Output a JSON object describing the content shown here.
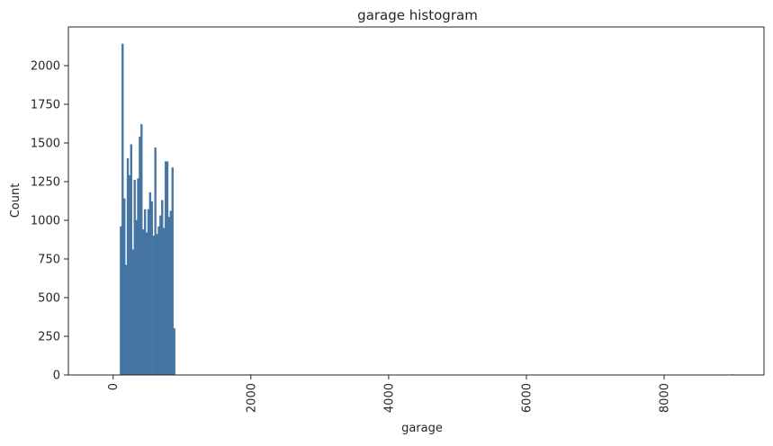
{
  "chart_data": {
    "type": "bar",
    "subtype": "histogram",
    "title": "garage histogram",
    "xlabel": "garage",
    "ylabel": "Count",
    "xlim": [
      -650,
      9450
    ],
    "ylim": [
      0,
      2250
    ],
    "xticks": [
      0,
      2000,
      4000,
      6000,
      8000
    ],
    "xtick_labels": [
      "0",
      "2000",
      "4000",
      "6000",
      "8000"
    ],
    "xtick_rotation": 90,
    "yticks": [
      0,
      250,
      500,
      750,
      1000,
      1250,
      1500,
      1750,
      2000
    ],
    "ytick_labels": [
      "0",
      "250",
      "500",
      "750",
      "1000",
      "1250",
      "1500",
      "1750",
      "2000"
    ],
    "grid": false,
    "bar_color": "#4878a8",
    "edge_color": "#3a6a96",
    "bins": [
      {
        "x0": 100,
        "x1": 125,
        "count": 960
      },
      {
        "x0": 125,
        "x1": 150,
        "count": 2140
      },
      {
        "x0": 150,
        "x1": 175,
        "count": 1140
      },
      {
        "x0": 175,
        "x1": 200,
        "count": 710
      },
      {
        "x0": 200,
        "x1": 225,
        "count": 1400
      },
      {
        "x0": 225,
        "x1": 250,
        "count": 1290
      },
      {
        "x0": 250,
        "x1": 275,
        "count": 1490
      },
      {
        "x0": 275,
        "x1": 300,
        "count": 810
      },
      {
        "x0": 300,
        "x1": 325,
        "count": 1260
      },
      {
        "x0": 325,
        "x1": 350,
        "count": 1000
      },
      {
        "x0": 350,
        "x1": 375,
        "count": 1270
      },
      {
        "x0": 375,
        "x1": 400,
        "count": 1540
      },
      {
        "x0": 400,
        "x1": 425,
        "count": 1620
      },
      {
        "x0": 425,
        "x1": 450,
        "count": 940
      },
      {
        "x0": 450,
        "x1": 475,
        "count": 1070
      },
      {
        "x0": 475,
        "x1": 500,
        "count": 920
      },
      {
        "x0": 500,
        "x1": 525,
        "count": 1070
      },
      {
        "x0": 525,
        "x1": 550,
        "count": 1180
      },
      {
        "x0": 550,
        "x1": 575,
        "count": 1120
      },
      {
        "x0": 575,
        "x1": 600,
        "count": 900
      },
      {
        "x0": 600,
        "x1": 625,
        "count": 1470
      },
      {
        "x0": 625,
        "x1": 650,
        "count": 910
      },
      {
        "x0": 650,
        "x1": 675,
        "count": 960
      },
      {
        "x0": 675,
        "x1": 700,
        "count": 1030
      },
      {
        "x0": 700,
        "x1": 725,
        "count": 1130
      },
      {
        "x0": 725,
        "x1": 750,
        "count": 950
      },
      {
        "x0": 750,
        "x1": 775,
        "count": 1380
      },
      {
        "x0": 775,
        "x1": 800,
        "count": 1380
      },
      {
        "x0": 800,
        "x1": 825,
        "count": 1020
      },
      {
        "x0": 825,
        "x1": 850,
        "count": 1060
      },
      {
        "x0": 850,
        "x1": 875,
        "count": 1340
      },
      {
        "x0": 875,
        "x1": 900,
        "count": 300
      },
      {
        "x0": 1975,
        "x1": 2000,
        "count": 3
      },
      {
        "x0": 8975,
        "x1": 9000,
        "count": 3
      }
    ]
  }
}
